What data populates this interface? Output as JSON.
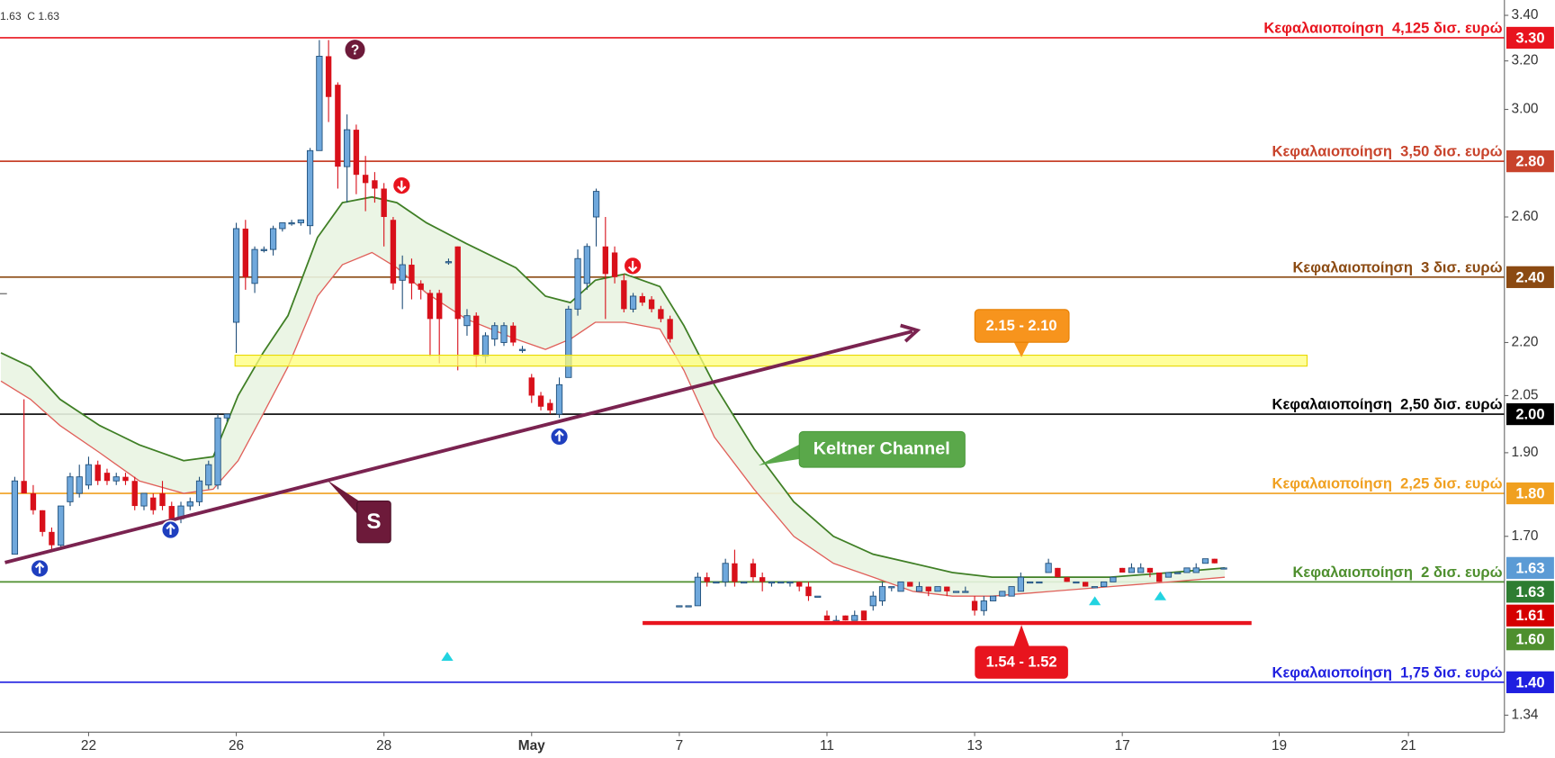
{
  "chart_data": {
    "type": "candlestick",
    "header_text": "1.63  C 1.63",
    "log_scale": true,
    "xlim": [
      -1.6,
      161.4
    ],
    "ylim": [
      1.31,
      3.47
    ],
    "xticks": [
      {
        "value": 8,
        "label": "22"
      },
      {
        "value": 24,
        "label": "26"
      },
      {
        "value": 40,
        "label": "28"
      },
      {
        "value": 56,
        "label": "May"
      },
      {
        "value": 72,
        "label": "7"
      },
      {
        "value": 88,
        "label": "11"
      },
      {
        "value": 104,
        "label": "13"
      },
      {
        "value": 120,
        "label": "17"
      },
      {
        "value": 137,
        "label": "19"
      },
      {
        "value": 151,
        "label": "21"
      }
    ],
    "yticks": [
      {
        "value": 3.4,
        "label": "3.40"
      },
      {
        "value": 3.2,
        "label": "3.20"
      },
      {
        "value": 3.0,
        "label": "3.00"
      },
      {
        "value": 2.6,
        "label": "2.60"
      },
      {
        "value": 2.2,
        "label": "2.20"
      },
      2.05,
      {
        "value": 1.9,
        "label": "1.90"
      },
      {
        "value": 1.7,
        "label": "1.70"
      },
      1.34
    ],
    "up_color": "#6fa8dc",
    "up_edge": "#1f4e79",
    "down_color": "#d8101a",
    "ohlc": [
      [
        1.66,
        1.84,
        1.66,
        1.83
      ],
      [
        1.83,
        2.04,
        1.8,
        1.8
      ],
      [
        1.8,
        1.82,
        1.75,
        1.76
      ],
      [
        1.76,
        1.76,
        1.7,
        1.71
      ],
      [
        1.71,
        1.72,
        1.67,
        1.68
      ],
      [
        1.68,
        1.77,
        1.67,
        1.77
      ],
      [
        1.78,
        1.85,
        1.77,
        1.84
      ],
      [
        1.8,
        1.87,
        1.79,
        1.84
      ],
      [
        1.82,
        1.89,
        1.81,
        1.87
      ],
      [
        1.87,
        1.88,
        1.82,
        1.83
      ],
      [
        1.85,
        1.86,
        1.82,
        1.83
      ],
      [
        1.83,
        1.85,
        1.82,
        1.84
      ],
      [
        1.84,
        1.85,
        1.82,
        1.83
      ],
      [
        1.83,
        1.84,
        1.76,
        1.77
      ],
      [
        1.77,
        1.8,
        1.76,
        1.8
      ],
      [
        1.79,
        1.8,
        1.75,
        1.76
      ],
      [
        1.8,
        1.83,
        1.76,
        1.77
      ],
      [
        1.77,
        1.78,
        1.73,
        1.74
      ],
      [
        1.74,
        1.78,
        1.73,
        1.77
      ],
      [
        1.77,
        1.79,
        1.76,
        1.78
      ],
      [
        1.78,
        1.84,
        1.77,
        1.83
      ],
      [
        1.82,
        1.88,
        1.81,
        1.87
      ],
      [
        1.82,
        2.0,
        1.81,
        1.99
      ],
      [
        1.99,
        2.0,
        1.98,
        2.0
      ],
      [
        2.26,
        2.58,
        2.17,
        2.56
      ],
      [
        2.56,
        2.59,
        2.36,
        2.4
      ],
      [
        2.38,
        2.5,
        2.35,
        2.49
      ],
      [
        2.49,
        2.5,
        2.48,
        2.49
      ],
      [
        2.49,
        2.57,
        2.47,
        2.56
      ],
      [
        2.56,
        2.58,
        2.55,
        2.58
      ],
      [
        2.58,
        2.59,
        2.57,
        2.58
      ],
      [
        2.58,
        2.59,
        2.57,
        2.59
      ],
      [
        2.57,
        2.85,
        2.54,
        2.84
      ],
      [
        2.84,
        3.29,
        2.84,
        3.22
      ],
      [
        3.22,
        3.29,
        2.95,
        3.05
      ],
      [
        3.1,
        3.11,
        2.7,
        2.78
      ],
      [
        2.78,
        2.98,
        2.65,
        2.92
      ],
      [
        2.92,
        2.94,
        2.68,
        2.75
      ],
      [
        2.75,
        2.82,
        2.62,
        2.72
      ],
      [
        2.73,
        2.76,
        2.65,
        2.7
      ],
      [
        2.7,
        2.72,
        2.5,
        2.6
      ],
      [
        2.59,
        2.6,
        2.36,
        2.38
      ],
      [
        2.39,
        2.47,
        2.3,
        2.44
      ],
      [
        2.44,
        2.46,
        2.33,
        2.38
      ],
      [
        2.38,
        2.39,
        2.33,
        2.36
      ],
      [
        2.35,
        2.36,
        2.16,
        2.27
      ],
      [
        2.35,
        2.36,
        2.14,
        2.27
      ],
      [
        2.45,
        2.46,
        2.44,
        2.45
      ],
      [
        2.5,
        2.5,
        2.12,
        2.27
      ],
      [
        2.25,
        2.3,
        2.22,
        2.28
      ],
      [
        2.28,
        2.29,
        2.13,
        2.16
      ],
      [
        2.16,
        2.23,
        2.14,
        2.22
      ],
      [
        2.21,
        2.26,
        2.19,
        2.25
      ],
      [
        2.2,
        2.26,
        2.19,
        2.25
      ],
      [
        2.25,
        2.26,
        2.19,
        2.2
      ],
      [
        2.18,
        2.19,
        2.17,
        2.18
      ],
      [
        2.1,
        2.11,
        2.03,
        2.05
      ],
      [
        2.05,
        2.06,
        2.01,
        2.02
      ],
      [
        2.03,
        2.04,
        2.0,
        2.01
      ],
      [
        2.0,
        2.1,
        1.99,
        2.08
      ],
      [
        2.1,
        2.31,
        2.1,
        2.3
      ],
      [
        2.3,
        2.49,
        2.28,
        2.46
      ],
      [
        2.38,
        2.51,
        2.36,
        2.5
      ],
      [
        2.6,
        2.7,
        2.5,
        2.69
      ],
      [
        2.5,
        2.6,
        2.27,
        2.41
      ],
      [
        2.48,
        2.5,
        2.38,
        2.4
      ],
      [
        2.39,
        2.41,
        2.29,
        2.3
      ],
      [
        2.3,
        2.35,
        2.29,
        2.34
      ],
      [
        2.34,
        2.35,
        2.31,
        2.32
      ],
      [
        2.33,
        2.34,
        2.29,
        2.3
      ],
      [
        2.3,
        2.31,
        2.26,
        2.27
      ],
      [
        2.27,
        2.28,
        2.2,
        2.21
      ],
      [
        1.55,
        1.55,
        1.55,
        1.55
      ],
      [
        1.55,
        1.55,
        1.55,
        1.55
      ],
      [
        1.55,
        1.62,
        1.55,
        1.61
      ],
      [
        1.61,
        1.62,
        1.59,
        1.6
      ],
      [
        1.6,
        1.6,
        1.6,
        1.6
      ],
      [
        1.6,
        1.65,
        1.59,
        1.64
      ],
      [
        1.64,
        1.67,
        1.59,
        1.6
      ],
      [
        1.6,
        1.6,
        1.6,
        1.6
      ],
      [
        1.64,
        1.65,
        1.6,
        1.61
      ],
      [
        1.61,
        1.62,
        1.58,
        1.6
      ],
      [
        1.6,
        1.6,
        1.59,
        1.6
      ],
      [
        1.6,
        1.6,
        1.6,
        1.6
      ],
      [
        1.6,
        1.6,
        1.59,
        1.6
      ],
      [
        1.6,
        1.6,
        1.58,
        1.59
      ],
      [
        1.59,
        1.6,
        1.56,
        1.57
      ],
      [
        1.57,
        1.57,
        1.57,
        1.57
      ],
      [
        1.53,
        1.54,
        1.52,
        1.52
      ],
      [
        1.52,
        1.53,
        1.52,
        1.52
      ],
      [
        1.53,
        1.53,
        1.52,
        1.52
      ],
      [
        1.52,
        1.54,
        1.52,
        1.53
      ],
      [
        1.54,
        1.54,
        1.52,
        1.52
      ],
      [
        1.55,
        1.58,
        1.54,
        1.57
      ],
      [
        1.56,
        1.6,
        1.55,
        1.59
      ],
      [
        1.59,
        1.59,
        1.58,
        1.59
      ],
      [
        1.58,
        1.6,
        1.58,
        1.6
      ],
      [
        1.6,
        1.6,
        1.59,
        1.59
      ],
      [
        1.58,
        1.6,
        1.58,
        1.59
      ],
      [
        1.59,
        1.59,
        1.57,
        1.58
      ],
      [
        1.58,
        1.59,
        1.58,
        1.59
      ],
      [
        1.59,
        1.59,
        1.57,
        1.58
      ],
      [
        1.58,
        1.58,
        1.58,
        1.58
      ],
      [
        1.58,
        1.59,
        1.58,
        1.58
      ],
      [
        1.56,
        1.57,
        1.53,
        1.54
      ],
      [
        1.54,
        1.57,
        1.53,
        1.56
      ],
      [
        1.56,
        1.57,
        1.56,
        1.57
      ],
      [
        1.57,
        1.58,
        1.57,
        1.58
      ],
      [
        1.57,
        1.59,
        1.57,
        1.59
      ],
      [
        1.58,
        1.62,
        1.58,
        1.61
      ],
      [
        1.6,
        1.6,
        1.6,
        1.6
      ],
      [
        1.6,
        1.6,
        1.6,
        1.6
      ],
      [
        1.62,
        1.65,
        1.62,
        1.64
      ],
      [
        1.63,
        1.63,
        1.61,
        1.61
      ],
      [
        1.61,
        1.61,
        1.6,
        1.6
      ],
      [
        1.6,
        1.6,
        1.6,
        1.6
      ],
      [
        1.6,
        1.6,
        1.59,
        1.59
      ],
      [
        1.59,
        1.59,
        1.59,
        1.59
      ],
      [
        1.59,
        1.6,
        1.59,
        1.6
      ],
      [
        1.6,
        1.61,
        1.6,
        1.61
      ],
      [
        1.63,
        1.63,
        1.62,
        1.62
      ],
      [
        1.62,
        1.64,
        1.62,
        1.63
      ],
      [
        1.62,
        1.64,
        1.62,
        1.63
      ],
      [
        1.63,
        1.63,
        1.61,
        1.62
      ],
      [
        1.62,
        1.62,
        1.6,
        1.6
      ],
      [
        1.61,
        1.62,
        1.61,
        1.62
      ],
      [
        1.62,
        1.62,
        1.62,
        1.62
      ],
      [
        1.62,
        1.63,
        1.62,
        1.63
      ],
      [
        1.62,
        1.64,
        1.62,
        1.63
      ],
      [
        1.64,
        1.65,
        1.64,
        1.65
      ],
      [
        1.65,
        1.65,
        1.64,
        1.64
      ],
      [
        1.63,
        1.63,
        1.63,
        1.63
      ]
    ],
    "keltner": {
      "upper_color": "#3f7f25",
      "lower_color": "#e0605a",
      "fill": "#e9f4e2",
      "x": [
        -1.5,
        1.7,
        4.9,
        9.2,
        13.5,
        18.3,
        21.5,
        24.2,
        26.9,
        29.6,
        32.8,
        35.5,
        38.7,
        41.4,
        44.6,
        48.9,
        54.3,
        57.5,
        60.2,
        62.9,
        66.1,
        69.9,
        72.5,
        75.8,
        80.1,
        84.4,
        88.7,
        93.0,
        97.3,
        101.6,
        105.9,
        112.3,
        118.7,
        125.2,
        131.1
      ],
      "upper": [
        2.17,
        2.13,
        2.04,
        1.97,
        1.92,
        1.88,
        1.89,
        2.05,
        2.17,
        2.28,
        2.53,
        2.65,
        2.67,
        2.65,
        2.58,
        2.51,
        2.43,
        2.34,
        2.32,
        2.39,
        2.41,
        2.37,
        2.25,
        2.08,
        1.91,
        1.78,
        1.7,
        1.66,
        1.64,
        1.62,
        1.61,
        1.61,
        1.61,
        1.62,
        1.63
      ],
      "lower": [
        2.09,
        2.04,
        1.97,
        1.9,
        1.83,
        1.8,
        1.81,
        1.88,
        2.0,
        2.13,
        2.34,
        2.44,
        2.48,
        2.43,
        2.35,
        2.27,
        2.21,
        2.18,
        2.21,
        2.26,
        2.26,
        2.24,
        2.12,
        1.94,
        1.81,
        1.7,
        1.64,
        1.61,
        1.58,
        1.57,
        1.57,
        1.58,
        1.59,
        1.6,
        1.61
      ]
    },
    "levels": [
      {
        "value": 3.3,
        "value_label": "3.30",
        "label": "Κεφαλαιοποίηση  4,125 δισ. ευρώ",
        "color": "#e8141e"
      },
      {
        "value": 2.8,
        "value_label": "2.80",
        "label": "Κεφαλαιοποίηση  3,50 δισ. ευρώ",
        "color": "#c8432b"
      },
      {
        "value": 2.4,
        "value_label": "2.40",
        "label": "Κεφαλαιοποίηση  3 δισ. ευρώ",
        "color": "#8b4a12"
      },
      {
        "value": 2.0,
        "value_label": "2.00",
        "label": "Κεφαλαιοποίηση  2,50 δισ. ευρώ",
        "color": "#000000"
      },
      {
        "value": 1.8,
        "value_label": "1.80",
        "label": "Κεφαλαιοποίηση  2,25 δισ. ευρώ",
        "color": "#f0a020"
      },
      {
        "value": 1.6,
        "value_label": "1.60",
        "label": "Κεφαλαιοποίηση  2 δισ. ευρώ",
        "color": "#4e8f2e"
      },
      {
        "value": 1.4,
        "value_label": "1.40",
        "label": "Κεφαλαιοποίηση  1,75 δισ. ευρώ",
        "color": "#1f1fe0"
      }
    ],
    "price_badges": [
      {
        "value": 1.63,
        "color": "#5b9bd5"
      },
      {
        "value": 1.63,
        "color": "#2e7d32"
      },
      {
        "value": 1.61,
        "color": "#d50000"
      }
    ],
    "annotations": {
      "zone_label": "2.15 - 2.10",
      "support_label": "1.54 - 1.52",
      "indicator_label": "Keltner Channel",
      "marker": "S",
      "flag": "?"
    }
  }
}
